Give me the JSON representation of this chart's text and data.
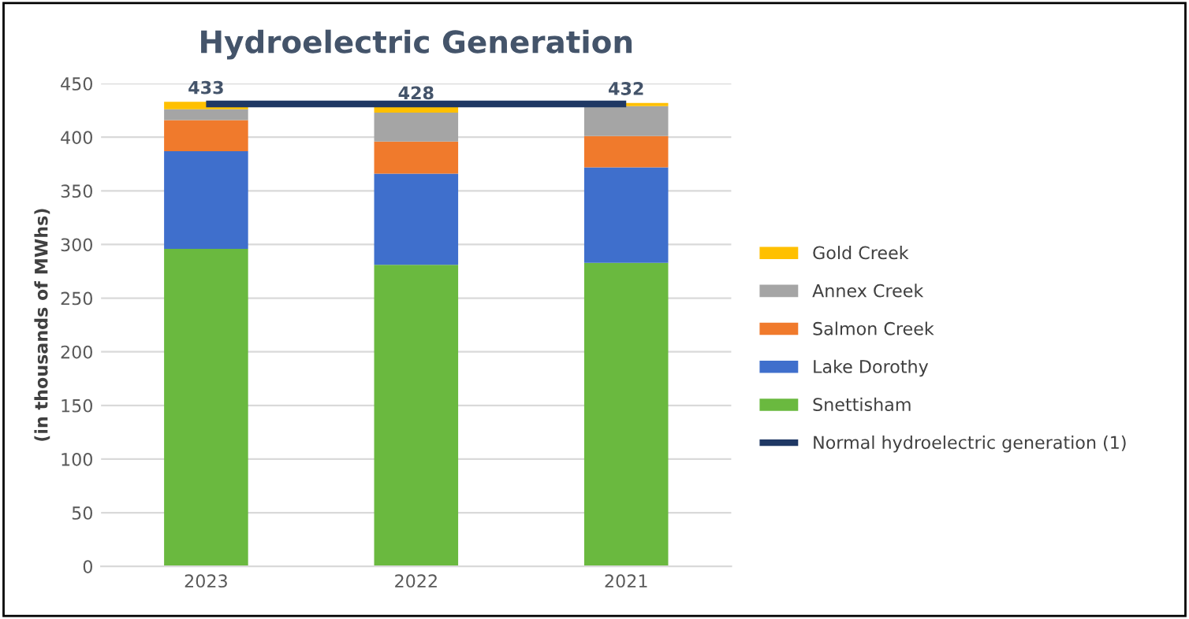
{
  "chart_data": {
    "type": "bar",
    "title": "Hydroelectric Generation",
    "ylabel": "(in thousands of MWhs)",
    "categories": [
      "2023",
      "2022",
      "2021"
    ],
    "stacked": true,
    "series": [
      {
        "name": "Snettisham",
        "color": "#6ab93f",
        "values": [
          296,
          281,
          283
        ]
      },
      {
        "name": "Lake Dorothy",
        "color": "#3f6fcc",
        "values": [
          91,
          85,
          89
        ]
      },
      {
        "name": "Salmon Creek",
        "color": "#f07a2c",
        "values": [
          29,
          30,
          29
        ]
      },
      {
        "name": "Annex Creek",
        "color": "#a5a5a5",
        "values": [
          10,
          27,
          28
        ]
      },
      {
        "name": "Gold Creek",
        "color": "#ffc000",
        "values": [
          7,
          5,
          3
        ]
      },
      {
        "name": "Normal hydroelectric generation (1)",
        "type": "line",
        "color": "#1f3864",
        "values": [
          431,
          431,
          431
        ]
      }
    ],
    "totals": [
      "433",
      "428",
      "432"
    ],
    "ylim": [
      0,
      450
    ],
    "yticks": [
      0,
      50,
      100,
      150,
      200,
      250,
      300,
      350,
      400,
      450
    ],
    "grid": "y",
    "legend": "right"
  }
}
